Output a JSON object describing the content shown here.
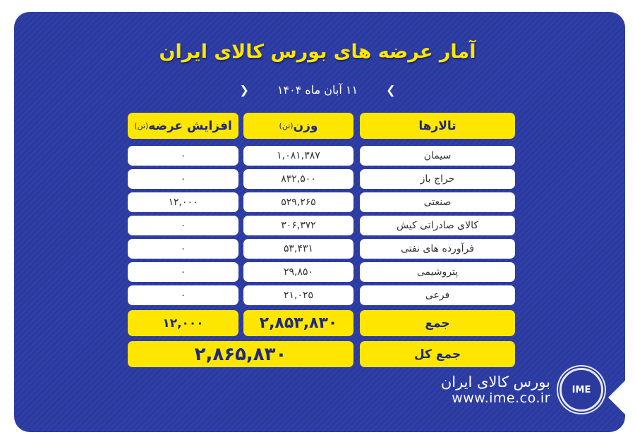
{
  "title": "آمار عرضه های بورس کالای ایران",
  "date": "۱۱ آبان ماه ۱۴۰۴",
  "headers": {
    "halls": "تالارها",
    "weight": "وزن",
    "weight_unit": "(تن)",
    "increase": "افزایش عرضه",
    "increase_unit": "(تن)"
  },
  "rows": [
    {
      "hall": "سیمان",
      "weight": "۱,۰۸۱,۳۸۷",
      "increase": "۰"
    },
    {
      "hall": "حراج باز",
      "weight": "۸۳۲,۵۰۰",
      "increase": "۰"
    },
    {
      "hall": "صنعتی",
      "weight": "۵۲۹,۲۶۵",
      "increase": "۱۲,۰۰۰"
    },
    {
      "hall": "کالای صادراتی کیش",
      "weight": "۳۰۶,۳۷۲",
      "increase": "۰"
    },
    {
      "hall": "فرآورده های نفتی",
      "weight": "۵۳,۴۳۱",
      "increase": "۰"
    },
    {
      "hall": "پتروشیمی",
      "weight": "۲۹,۸۵۰",
      "increase": "۰"
    },
    {
      "hall": "فرعی",
      "weight": "۲۱,۰۲۵",
      "increase": "۰"
    }
  ],
  "sum": {
    "label": "جمع",
    "weight": "۲,۸۵۳,۸۳۰",
    "increase": "۱۲,۰۰۰"
  },
  "total": {
    "label": "جمع کل",
    "value": "۲,۸۶۵,۸۳۰"
  },
  "footer": {
    "brand": "بورس کالای ایران",
    "url": "www.ime.co.ir",
    "logo": "IME"
  },
  "colors": {
    "background": "#2b3a9f",
    "accent": "#ffe600"
  }
}
